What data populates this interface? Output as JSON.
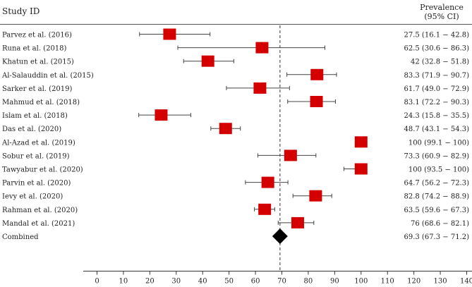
{
  "chart_data": {
    "type": "forest",
    "study_column_header": "Study ID",
    "effect_column_header": [
      "Prevalence",
      "(95% CI)"
    ],
    "studies": [
      {
        "name": "Parvez et al. (2016)",
        "estimate": 27.5,
        "lower": 16.1,
        "upper": 42.8,
        "label": "27.5 (16.1 − 42.8)"
      },
      {
        "name": "Runa et al. (2018)",
        "estimate": 62.5,
        "lower": 30.6,
        "upper": 86.3,
        "label": "62.5 (30.6 − 86.3)"
      },
      {
        "name": "Khatun et al. (2015)",
        "estimate": 42,
        "lower": 32.8,
        "upper": 51.8,
        "label": "42 (32.8 − 51.8)"
      },
      {
        "name": "Al-Salauddin et al. (2015)",
        "estimate": 83.3,
        "lower": 71.9,
        "upper": 90.7,
        "label": "83.3 (71.9 − 90.7)"
      },
      {
        "name": "Sarker et al. (2019)",
        "estimate": 61.7,
        "lower": 49.0,
        "upper": 72.9,
        "label": "61.7 (49.0 − 72.9)"
      },
      {
        "name": "Mahmud et al. (2018)",
        "estimate": 83.1,
        "lower": 72.2,
        "upper": 90.3,
        "label": "83.1 (72.2 − 90.3)"
      },
      {
        "name": "Islam et al. (2018)",
        "estimate": 24.3,
        "lower": 15.8,
        "upper": 35.5,
        "label": "24.3 (15.8 − 35.5)"
      },
      {
        "name": "Das et al. (2020)",
        "estimate": 48.7,
        "lower": 43.1,
        "upper": 54.3,
        "label": "48.7 (43.1 − 54.3)"
      },
      {
        "name": "Al-Azad et al. (2019)",
        "estimate": 100,
        "lower": 99.1,
        "upper": 100,
        "label": "100 (99.1 − 100)"
      },
      {
        "name": "Sobur et al. (2019)",
        "estimate": 73.3,
        "lower": 60.9,
        "upper": 82.9,
        "label": "73.3 (60.9 − 82.9)"
      },
      {
        "name": "Tawyabur et al. (2020)",
        "estimate": 100,
        "lower": 93.5,
        "upper": 100,
        "label": "100 (93.5 − 100)"
      },
      {
        "name": "Parvin et al. (2020)",
        "estimate": 64.7,
        "lower": 56.2,
        "upper": 72.3,
        "label": "64.7 (56.2 − 72.3)"
      },
      {
        "name": "Ievy et al. (2020)",
        "estimate": 82.8,
        "lower": 74.2,
        "upper": 88.9,
        "label": "82.8 (74.2 − 88.9)"
      },
      {
        "name": "Rahman et al. (2020)",
        "estimate": 63.5,
        "lower": 59.6,
        "upper": 67.3,
        "label": "63.5 (59.6 − 67.3)"
      },
      {
        "name": "Mandal et al. (2021)",
        "estimate": 76,
        "lower": 68.6,
        "upper": 82.1,
        "label": "76 (68.6 − 82.1)"
      }
    ],
    "combined": {
      "name": "Combined",
      "estimate": 69.3,
      "lower": 67.3,
      "upper": 71.2,
      "label": "69.3 (67.3 − 71.2)"
    },
    "reference_line": 69.3,
    "xlim": [
      0,
      140
    ],
    "xticks": [
      0,
      10,
      20,
      30,
      40,
      50,
      60,
      70,
      80,
      90,
      100,
      110,
      120,
      130,
      140
    ],
    "marker_color": "#d40000",
    "combined_color": "#000000"
  }
}
